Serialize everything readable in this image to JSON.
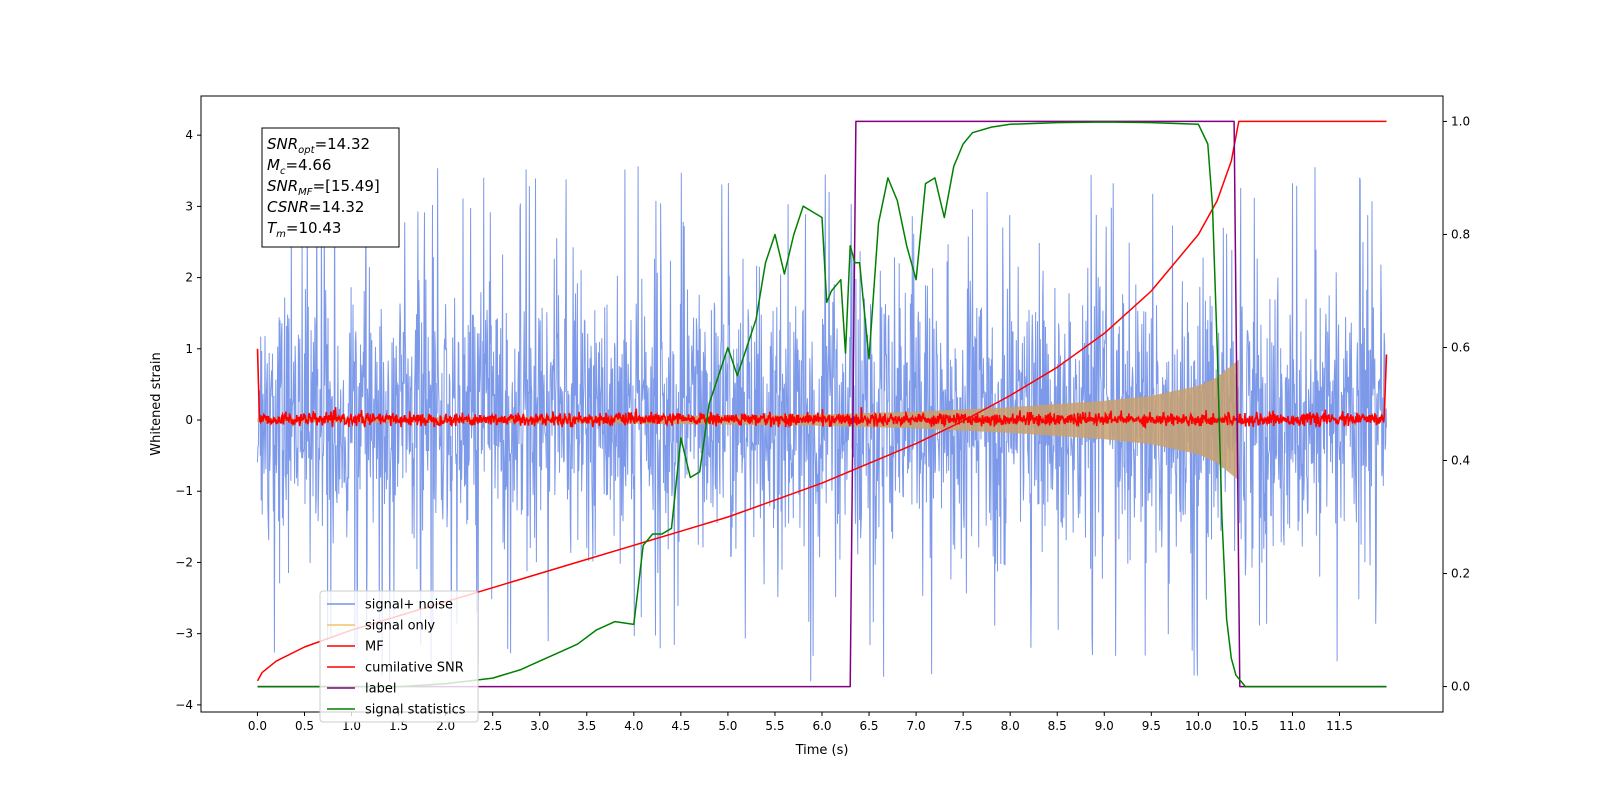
{
  "chart_data": {
    "type": "line",
    "xlabel": "Time (s)",
    "ylabel": "Whitened strain",
    "xlim": [
      -0.6,
      12.6
    ],
    "ylim": [
      -4.1,
      4.55
    ],
    "ylim_right": [
      -0.045,
      1.045
    ],
    "x_ticks": [
      0.0,
      0.5,
      1.0,
      1.5,
      2.0,
      2.5,
      3.0,
      3.5,
      4.0,
      4.5,
      5.0,
      5.5,
      6.0,
      6.5,
      7.0,
      7.5,
      8.0,
      8.5,
      9.0,
      9.5,
      10.0,
      10.5,
      11.0,
      11.5
    ],
    "x_tick_labels": [
      "0.0",
      "0.5",
      "1.0",
      "1.5",
      "2.0",
      "2.5",
      "3.0",
      "3.5",
      "4.0",
      "4.5",
      "5.0",
      "5.5",
      "6.0",
      "6.5",
      "7.0",
      "7.5",
      "8.0",
      "8.5",
      "9.0",
      "9.5",
      "10.0",
      "10.5",
      "11.0",
      "11.5"
    ],
    "y_ticks": [
      4,
      3,
      2,
      1,
      0,
      -1,
      -2,
      -3,
      -4
    ],
    "y_tick_labels": [
      "4",
      "3",
      "2",
      "1",
      "0",
      "−1",
      "−2",
      "−3",
      "−4"
    ],
    "y_right_ticks": [
      1.0,
      0.8,
      0.6,
      0.4,
      0.2,
      0.0
    ],
    "y_right_tick_labels": [
      "1.0",
      "0.8",
      "0.6",
      "0.4",
      "0.2",
      "0.0"
    ],
    "annotations": [
      {
        "base": "SNR",
        "sub": "opt",
        "value": "=14.32"
      },
      {
        "base": "M",
        "sub": "c",
        "value": "=4.66"
      },
      {
        "base": "SNR",
        "sub": "MF",
        "value": "=[15.49]"
      },
      {
        "base": "CSNR",
        "sub": "",
        "value": "=14.32"
      },
      {
        "base": "T",
        "sub": "m",
        "value": "=10.43"
      }
    ],
    "legend": {
      "placement": "bottom-left",
      "entries": [
        {
          "label": "signal+ noise",
          "color": "#7693e8"
        },
        {
          "label": "signal only",
          "color": "#f2c46a"
        },
        {
          "label": "MF",
          "color": "#ff0000"
        },
        {
          "label": "cumilative SNR",
          "color": "#ff0000"
        },
        {
          "label": "label",
          "color": "#800080"
        },
        {
          "label": "signal statistics",
          "color": "#008000"
        }
      ]
    },
    "series": [
      {
        "name": "signal+ noise",
        "axis": "left",
        "kind": "noise",
        "color": "#7693e8",
        "x_range": [
          0.0,
          12.0
        ],
        "envelope_typical": [
          -2.0,
          2.1
        ],
        "envelope_extreme": [
          -3.7,
          3.6
        ]
      },
      {
        "name": "signal only",
        "axis": "left",
        "kind": "chirp",
        "color": "#f2c46a",
        "x_range": [
          0.0,
          10.43
        ],
        "amplitude_x": [
          0.0,
          4.0,
          6.0,
          7.0,
          8.0,
          9.0,
          9.5,
          10.0,
          10.2,
          10.43
        ],
        "amplitude_y": [
          0.03,
          0.05,
          0.08,
          0.12,
          0.18,
          0.27,
          0.34,
          0.48,
          0.6,
          0.85
        ]
      },
      {
        "name": "MF",
        "axis": "left",
        "kind": "noise",
        "color": "#ff0000",
        "x_range": [
          0.0,
          12.0
        ],
        "envelope_typical": [
          -0.08,
          0.1
        ],
        "end_values": [
          1.0,
          0.92
        ]
      },
      {
        "name": "cumilative SNR",
        "axis": "right",
        "color": "#ff0000",
        "x": [
          0.0,
          0.05,
          0.2,
          0.5,
          1.0,
          1.5,
          2.0,
          2.5,
          3.0,
          3.5,
          4.0,
          4.5,
          5.0,
          5.5,
          6.0,
          6.5,
          7.0,
          7.5,
          8.0,
          8.5,
          9.0,
          9.5,
          10.0,
          10.2,
          10.35,
          10.43,
          12.0
        ],
        "y": [
          0.01,
          0.025,
          0.045,
          0.07,
          0.1,
          0.125,
          0.15,
          0.175,
          0.2,
          0.225,
          0.25,
          0.275,
          0.3,
          0.33,
          0.36,
          0.395,
          0.43,
          0.47,
          0.515,
          0.565,
          0.625,
          0.7,
          0.8,
          0.86,
          0.93,
          1.0,
          1.0
        ]
      },
      {
        "name": "label",
        "axis": "right",
        "color": "#800080",
        "x": [
          0.0,
          6.3,
          6.36,
          10.38,
          10.44,
          12.0
        ],
        "y": [
          0.0,
          0.0,
          1.0,
          1.0,
          0.0,
          0.0
        ]
      },
      {
        "name": "signal statistics",
        "axis": "right",
        "color": "#008000",
        "x": [
          0.0,
          0.5,
          1.0,
          1.5,
          2.0,
          2.5,
          2.8,
          3.0,
          3.2,
          3.4,
          3.6,
          3.8,
          4.0,
          4.1,
          4.2,
          4.3,
          4.4,
          4.5,
          4.6,
          4.7,
          4.8,
          4.9,
          5.0,
          5.1,
          5.2,
          5.3,
          5.4,
          5.5,
          5.6,
          5.7,
          5.8,
          5.9,
          6.0,
          6.05,
          6.1,
          6.2,
          6.25,
          6.3,
          6.35,
          6.4,
          6.5,
          6.6,
          6.7,
          6.8,
          6.9,
          7.0,
          7.1,
          7.2,
          7.3,
          7.4,
          7.5,
          7.6,
          7.8,
          8.0,
          8.5,
          9.0,
          9.5,
          10.0,
          10.1,
          10.15,
          10.2,
          10.25,
          10.3,
          10.35,
          10.4,
          10.5,
          11.0,
          11.5,
          12.0
        ],
        "y": [
          0.0,
          0.0,
          0.0,
          0.0,
          0.005,
          0.015,
          0.03,
          0.045,
          0.06,
          0.075,
          0.1,
          0.115,
          0.11,
          0.25,
          0.27,
          0.27,
          0.28,
          0.44,
          0.37,
          0.38,
          0.5,
          0.55,
          0.6,
          0.55,
          0.6,
          0.65,
          0.75,
          0.8,
          0.73,
          0.8,
          0.85,
          0.84,
          0.83,
          0.68,
          0.7,
          0.72,
          0.59,
          0.78,
          0.75,
          0.75,
          0.58,
          0.82,
          0.9,
          0.86,
          0.78,
          0.72,
          0.89,
          0.9,
          0.83,
          0.92,
          0.96,
          0.98,
          0.99,
          0.995,
          0.998,
          0.999,
          0.998,
          0.995,
          0.96,
          0.85,
          0.6,
          0.3,
          0.12,
          0.05,
          0.02,
          0.0,
          0.0,
          0.0,
          0.0
        ]
      }
    ]
  }
}
